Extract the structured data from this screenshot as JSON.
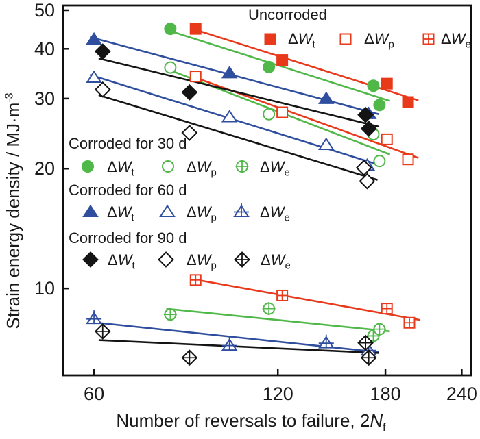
{
  "chart_data": {
    "type": "scatter",
    "x_scale": "log",
    "y_scale": "log",
    "xlim": [
      53.4,
      248.6
    ],
    "ylim": [
      6.05,
      51.4
    ],
    "x_ticks": [
      "60",
      "120",
      "180",
      "240"
    ],
    "y_ticks": [
      "10",
      "20",
      "30",
      "40",
      "50"
    ],
    "xlabel_prefix": "Number of reversals to failure, 2",
    "xlabel_symbol": "N",
    "xlabel_sub": "f",
    "ylabel": "Strain energy density / MJ·m",
    "ylabel_sup": "-3",
    "grid": false,
    "colors": {
      "uncorroded": "#e8391a",
      "corroded_30d": "#50b848",
      "corroded_60d": "#2f4e9e",
      "corroded_90d": "#141414"
    },
    "legend_groups": [
      {
        "title": "Uncorroded",
        "shape": "square",
        "color": "#e8391a",
        "items": [
          {
            "delta": "Δ",
            "letter": "W",
            "sub": "t",
            "variant": "filled"
          },
          {
            "delta": "Δ",
            "letter": "W",
            "sub": "p",
            "variant": "open"
          },
          {
            "delta": "Δ",
            "letter": "W",
            "sub": "e",
            "variant": "crossed"
          }
        ]
      },
      {
        "title": "Corroded for 30 d",
        "shape": "circle",
        "color": "#50b848",
        "items": [
          {
            "delta": "Δ",
            "letter": "W",
            "sub": "t",
            "variant": "filled"
          },
          {
            "delta": "Δ",
            "letter": "W",
            "sub": "p",
            "variant": "open"
          },
          {
            "delta": "Δ",
            "letter": "W",
            "sub": "e",
            "variant": "crossed"
          }
        ]
      },
      {
        "title": "Corroded for 60 d",
        "shape": "triangle",
        "color": "#2f4e9e",
        "items": [
          {
            "delta": "Δ",
            "letter": "W",
            "sub": "t",
            "variant": "filled"
          },
          {
            "delta": "Δ",
            "letter": "W",
            "sub": "p",
            "variant": "open"
          },
          {
            "delta": "Δ",
            "letter": "W",
            "sub": "e",
            "variant": "crossed"
          }
        ]
      },
      {
        "title": "Corroded for 90 d",
        "shape": "diamond",
        "color": "#141414",
        "items": [
          {
            "delta": "Δ",
            "letter": "W",
            "sub": "t",
            "variant": "filled"
          },
          {
            "delta": "Δ",
            "letter": "W",
            "sub": "p",
            "variant": "open"
          },
          {
            "delta": "Δ",
            "letter": "W",
            "sub": "e",
            "variant": "crossed"
          }
        ]
      }
    ],
    "series": [
      {
        "name": "Uncorroded ΔWt",
        "shape": "square",
        "variant": "filled",
        "color": "#e8391a",
        "x": [
          88,
          122,
          181,
          196
        ],
        "y": [
          44.9,
          37.5,
          32.7,
          29.4
        ],
        "fit_line": true
      },
      {
        "name": "Uncorroded ΔWp",
        "shape": "square",
        "variant": "open",
        "color": "#e8391a",
        "x": [
          88,
          122,
          181,
          196
        ],
        "y": [
          34.1,
          27.7,
          23.7,
          21.1
        ],
        "fit_line": true
      },
      {
        "name": "Uncorroded ΔWe",
        "shape": "square",
        "variant": "crossed",
        "color": "#e8391a",
        "x": [
          88,
          122,
          181,
          197
        ],
        "y": [
          10.5,
          9.6,
          8.9,
          8.2
        ],
        "fit_line": true
      },
      {
        "name": "Corroded 30 d ΔWt",
        "shape": "circle",
        "variant": "filled",
        "color": "#50b848",
        "x": [
          80,
          116,
          172,
          176
        ],
        "y": [
          44.9,
          36.0,
          32.3,
          28.9
        ],
        "fit_line": true
      },
      {
        "name": "Corroded 30 d ΔWp",
        "shape": "circle",
        "variant": "open",
        "color": "#50b848",
        "x": [
          80,
          116,
          172,
          176
        ],
        "y": [
          35.9,
          27.4,
          24.4,
          20.9
        ],
        "fit_line": true
      },
      {
        "name": "Corroded 30 d ΔWe",
        "shape": "circle",
        "variant": "crossed",
        "color": "#50b848",
        "x": [
          80,
          116,
          172,
          176
        ],
        "y": [
          8.6,
          8.9,
          7.6,
          7.9
        ],
        "fit_line": true
      },
      {
        "name": "Corroded 60 d ΔWt",
        "shape": "triangle",
        "variant": "filled",
        "color": "#2f4e9e",
        "x": [
          60,
          100,
          144,
          169
        ],
        "y": [
          42.3,
          34.8,
          30.0,
          27.5
        ],
        "fit_line": true
      },
      {
        "name": "Corroded 60 d ΔWp",
        "shape": "triangle",
        "variant": "open",
        "color": "#2f4e9e",
        "x": [
          60,
          100,
          144,
          168
        ],
        "y": [
          33.9,
          27.0,
          23.0,
          20.4
        ],
        "fit_line": true
      },
      {
        "name": "Corroded 60 d ΔWe",
        "shape": "triangle",
        "variant": "crossed",
        "color": "#2f4e9e",
        "x": [
          60,
          100,
          144,
          169
        ],
        "y": [
          8.4,
          7.2,
          7.3,
          7.0
        ],
        "fit_line": true
      },
      {
        "name": "Corroded 90 d ΔWt",
        "shape": "diamond",
        "variant": "filled",
        "color": "#141414",
        "x": [
          62,
          86,
          167,
          169
        ],
        "y": [
          39.4,
          31.1,
          27.3,
          25.2
        ],
        "fit_line": true
      },
      {
        "name": "Corroded 90 d ΔWp",
        "shape": "diamond",
        "variant": "open",
        "color": "#141414",
        "x": [
          62,
          86,
          166,
          168
        ],
        "y": [
          31.6,
          24.6,
          20.1,
          18.6
        ],
        "fit_line": true
      },
      {
        "name": "Corroded 90 d ΔWe",
        "shape": "diamond",
        "variant": "crossed",
        "color": "#141414",
        "x": [
          62,
          86,
          167,
          169
        ],
        "y": [
          7.8,
          6.7,
          7.3,
          6.7
        ],
        "fit_line": true
      }
    ]
  }
}
